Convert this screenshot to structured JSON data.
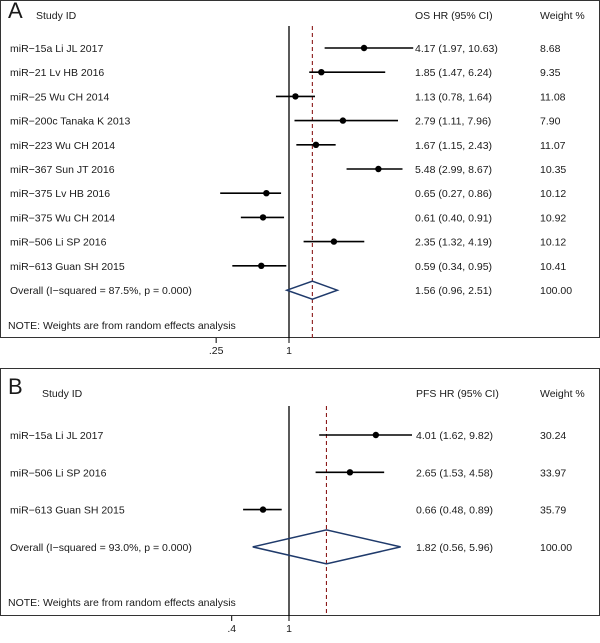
{
  "chart_data": [
    {
      "type": "forest",
      "panel_label": "A",
      "headers": {
        "study": "Study ID",
        "effect": "OS  HR (95% CI)",
        "weight": "Weight  %"
      },
      "studies": [
        {
          "label": "miR−15a  Li JL 2017",
          "hr": 4.17,
          "lo": 1.97,
          "hi": 10.63,
          "ci_text": "4.17 (1.97, 10.63)",
          "weight": "8.68"
        },
        {
          "label": "miR−21  Lv HB 2016",
          "hr": 1.85,
          "lo": 1.47,
          "hi": 6.24,
          "ci_text": "1.85 (1.47, 6.24)",
          "weight": "9.35"
        },
        {
          "label": "miR−25  Wu CH 2014",
          "hr": 1.13,
          "lo": 0.78,
          "hi": 1.64,
          "ci_text": "1.13 (0.78, 1.64)",
          "weight": "11.08"
        },
        {
          "label": "miR−200c Tanaka K 2013",
          "hr": 2.79,
          "lo": 1.11,
          "hi": 7.96,
          "ci_text": "2.79 (1.11, 7.96)",
          "weight": "7.90"
        },
        {
          "label": "miR−223  Wu CH 2014",
          "hr": 1.67,
          "lo": 1.15,
          "hi": 2.43,
          "ci_text": "1.67 (1.15, 2.43)",
          "weight": "11.07"
        },
        {
          "label": "miR−367  Sun JT 2016",
          "hr": 5.48,
          "lo": 2.99,
          "hi": 8.67,
          "ci_text": "5.48 (2.99, 8.67)",
          "weight": "10.35"
        },
        {
          "label": "miR−375  Lv HB 2016",
          "hr": 0.65,
          "lo": 0.27,
          "hi": 0.86,
          "ci_text": "0.65 (0.27, 0.86)",
          "weight": "10.12"
        },
        {
          "label": "miR−375  Wu CH 2014",
          "hr": 0.61,
          "lo": 0.4,
          "hi": 0.91,
          "ci_text": "0.61 (0.40, 0.91)",
          "weight": "10.92"
        },
        {
          "label": "miR−506  Li SP 2016",
          "hr": 2.35,
          "lo": 1.32,
          "hi": 4.19,
          "ci_text": "2.35 (1.32, 4.19)",
          "weight": "10.12"
        },
        {
          "label": "miR−613  Guan SH 2015",
          "hr": 0.59,
          "lo": 0.34,
          "hi": 0.95,
          "ci_text": "0.59 (0.34, 0.95)",
          "weight": "10.41"
        }
      ],
      "overall": {
        "label": "Overall  (I−squared = 87.5%, p = 0.000)",
        "hr": 1.56,
        "lo": 0.96,
        "hi": 2.51,
        "ci_text": "1.56 (0.96, 2.51)",
        "weight": "100.00"
      },
      "note": "NOTE: Weights are from random effects analysis",
      "x_scale": "log",
      "x_ticks": [
        {
          "value": 0.25,
          "label": ".25"
        },
        {
          "value": 1,
          "label": "1"
        }
      ],
      "colors": {
        "line": "#000000",
        "diamond": "#1f3a6b",
        "reference": "#8b1a1a"
      }
    },
    {
      "type": "forest",
      "panel_label": "B",
      "headers": {
        "study": "Study ID",
        "effect": "PFS  HR (95% CI)",
        "weight": "Weight  %"
      },
      "studies": [
        {
          "label": "miR−15a  Li JL 2017",
          "hr": 4.01,
          "lo": 1.62,
          "hi": 9.82,
          "ci_text": "4.01 (1.62, 9.82)",
          "weight": "30.24"
        },
        {
          "label": "miR−506  Li SP 2016",
          "hr": 2.65,
          "lo": 1.53,
          "hi": 4.58,
          "ci_text": "2.65 (1.53, 4.58)",
          "weight": "33.97"
        },
        {
          "label": "miR−613  Guan SH 2015",
          "hr": 0.66,
          "lo": 0.48,
          "hi": 0.89,
          "ci_text": "0.66 (0.48, 0.89)",
          "weight": "35.79"
        }
      ],
      "overall": {
        "label": "Overall  (I−squared = 93.0%, p = 0.000)",
        "hr": 1.82,
        "lo": 0.56,
        "hi": 5.96,
        "ci_text": "1.82 (0.56, 5.96)",
        "weight": "100.00"
      },
      "note": "NOTE: Weights are from random effects analysis",
      "x_scale": "log",
      "x_ticks": [
        {
          "value": 0.4,
          "label": ".4"
        },
        {
          "value": 1,
          "label": "1"
        }
      ],
      "colors": {
        "line": "#000000",
        "diamond": "#1f3a6b",
        "reference": "#8b1a1a"
      }
    }
  ]
}
